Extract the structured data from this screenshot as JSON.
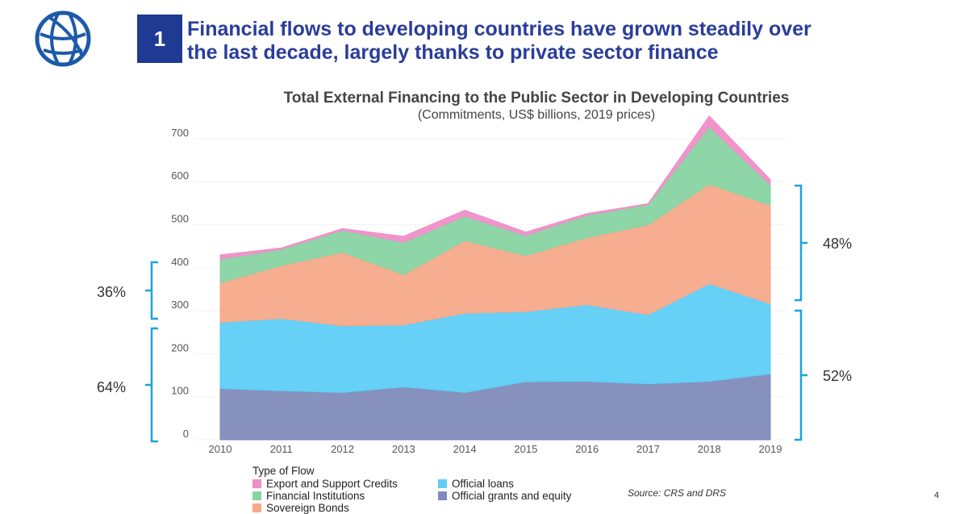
{
  "slide": {
    "number": "1",
    "headline_line1": "Financial flows to developing countries have grown steadily over",
    "headline_line2": "the last decade, largely thanks to private sector finance",
    "source": "Source: CRS and DRS",
    "page": "4",
    "logo_icon": "world-bank-globe-icon"
  },
  "chart_data": {
    "type": "area",
    "stacked": true,
    "title": "Total External Financing to the Public Sector in Developing Countries",
    "subtitle": "(Commitments, US$ billions, 2019 prices)",
    "x": [
      2010,
      2011,
      2012,
      2013,
      2014,
      2015,
      2016,
      2017,
      2018,
      2019
    ],
    "ylim": [
      0,
      750
    ],
    "yticks": [
      0,
      100,
      200,
      300,
      400,
      500,
      600,
      700
    ],
    "grid": true,
    "legend_title": "Type of Flow",
    "legend_placement": "bottom-left",
    "series": [
      {
        "name": "Official grants and equity",
        "color": "#7f8bbb",
        "values": [
          119,
          114,
          110,
          123,
          110,
          135,
          136,
          130,
          136,
          153
        ]
      },
      {
        "name": "Official loans",
        "color": "#5ecdf5",
        "values": [
          154,
          168,
          155,
          144,
          184,
          163,
          178,
          161,
          227,
          163
        ]
      },
      {
        "name": "Sovereign Bonds",
        "color": "#f5a98a",
        "values": [
          92,
          123,
          171,
          117,
          169,
          130,
          156,
          209,
          231,
          229
        ]
      },
      {
        "name": "Financial Institutions",
        "color": "#88d3a2",
        "values": [
          55,
          38,
          51,
          75,
          57,
          47,
          52,
          47,
          134,
          48
        ]
      },
      {
        "name": "Export and Support Credits",
        "color": "#ef8fc8",
        "values": [
          10,
          3,
          4,
          14,
          14,
          8,
          4,
          2,
          25,
          12
        ]
      }
    ],
    "annotations": {
      "left_upper": "36%",
      "left_lower": "64%",
      "right_upper": "48%",
      "right_lower": "52%"
    },
    "bracket_color": "#1aa3e0"
  }
}
